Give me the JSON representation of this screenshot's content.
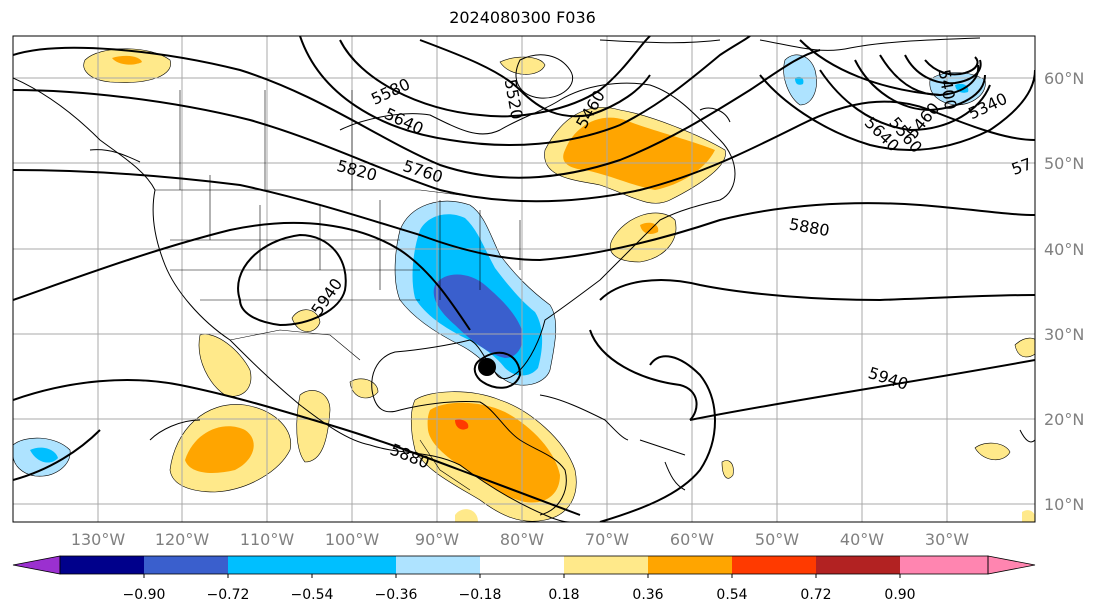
{
  "title": "2024080300 F036",
  "map": {
    "lon_ticks": [
      "130°W",
      "120°W",
      "110°W",
      "100°W",
      "90°W",
      "80°W",
      "70°W",
      "60°W",
      "50°W",
      "40°W",
      "30°W"
    ],
    "lat_ticks": [
      "60°N",
      "50°N",
      "40°N",
      "30°N",
      "20°N",
      "10°N"
    ],
    "contour_labels": [
      "5580",
      "5520",
      "5460",
      "5640",
      "5760",
      "5820",
      "5880",
      "5940",
      "5880",
      "5940",
      "5400",
      "5460",
      "5560",
      "5640",
      "5340",
      "57"
    ],
    "hurricane_marker": "storm-center"
  },
  "colorbar": {
    "ticks": [
      "−0.90",
      "−0.72",
      "−0.54",
      "−0.36",
      "−0.18",
      "0.18",
      "0.36",
      "0.54",
      "0.72",
      "0.90"
    ],
    "colors": [
      "#9b30d0",
      "#00008b",
      "#3a5fcd",
      "#00bfff",
      "#aee3ff",
      "#ffffff",
      "#ffe98a",
      "#ffa500",
      "#ff3a00",
      "#b22222",
      "#ff85b0"
    ]
  },
  "colors": {
    "pos1": "#ffe98a",
    "pos2": "#ffa500",
    "pos3": "#ff3a00",
    "neg1": "#aee3ff",
    "neg2": "#00bfff",
    "neg3": "#3a5fcd"
  }
}
